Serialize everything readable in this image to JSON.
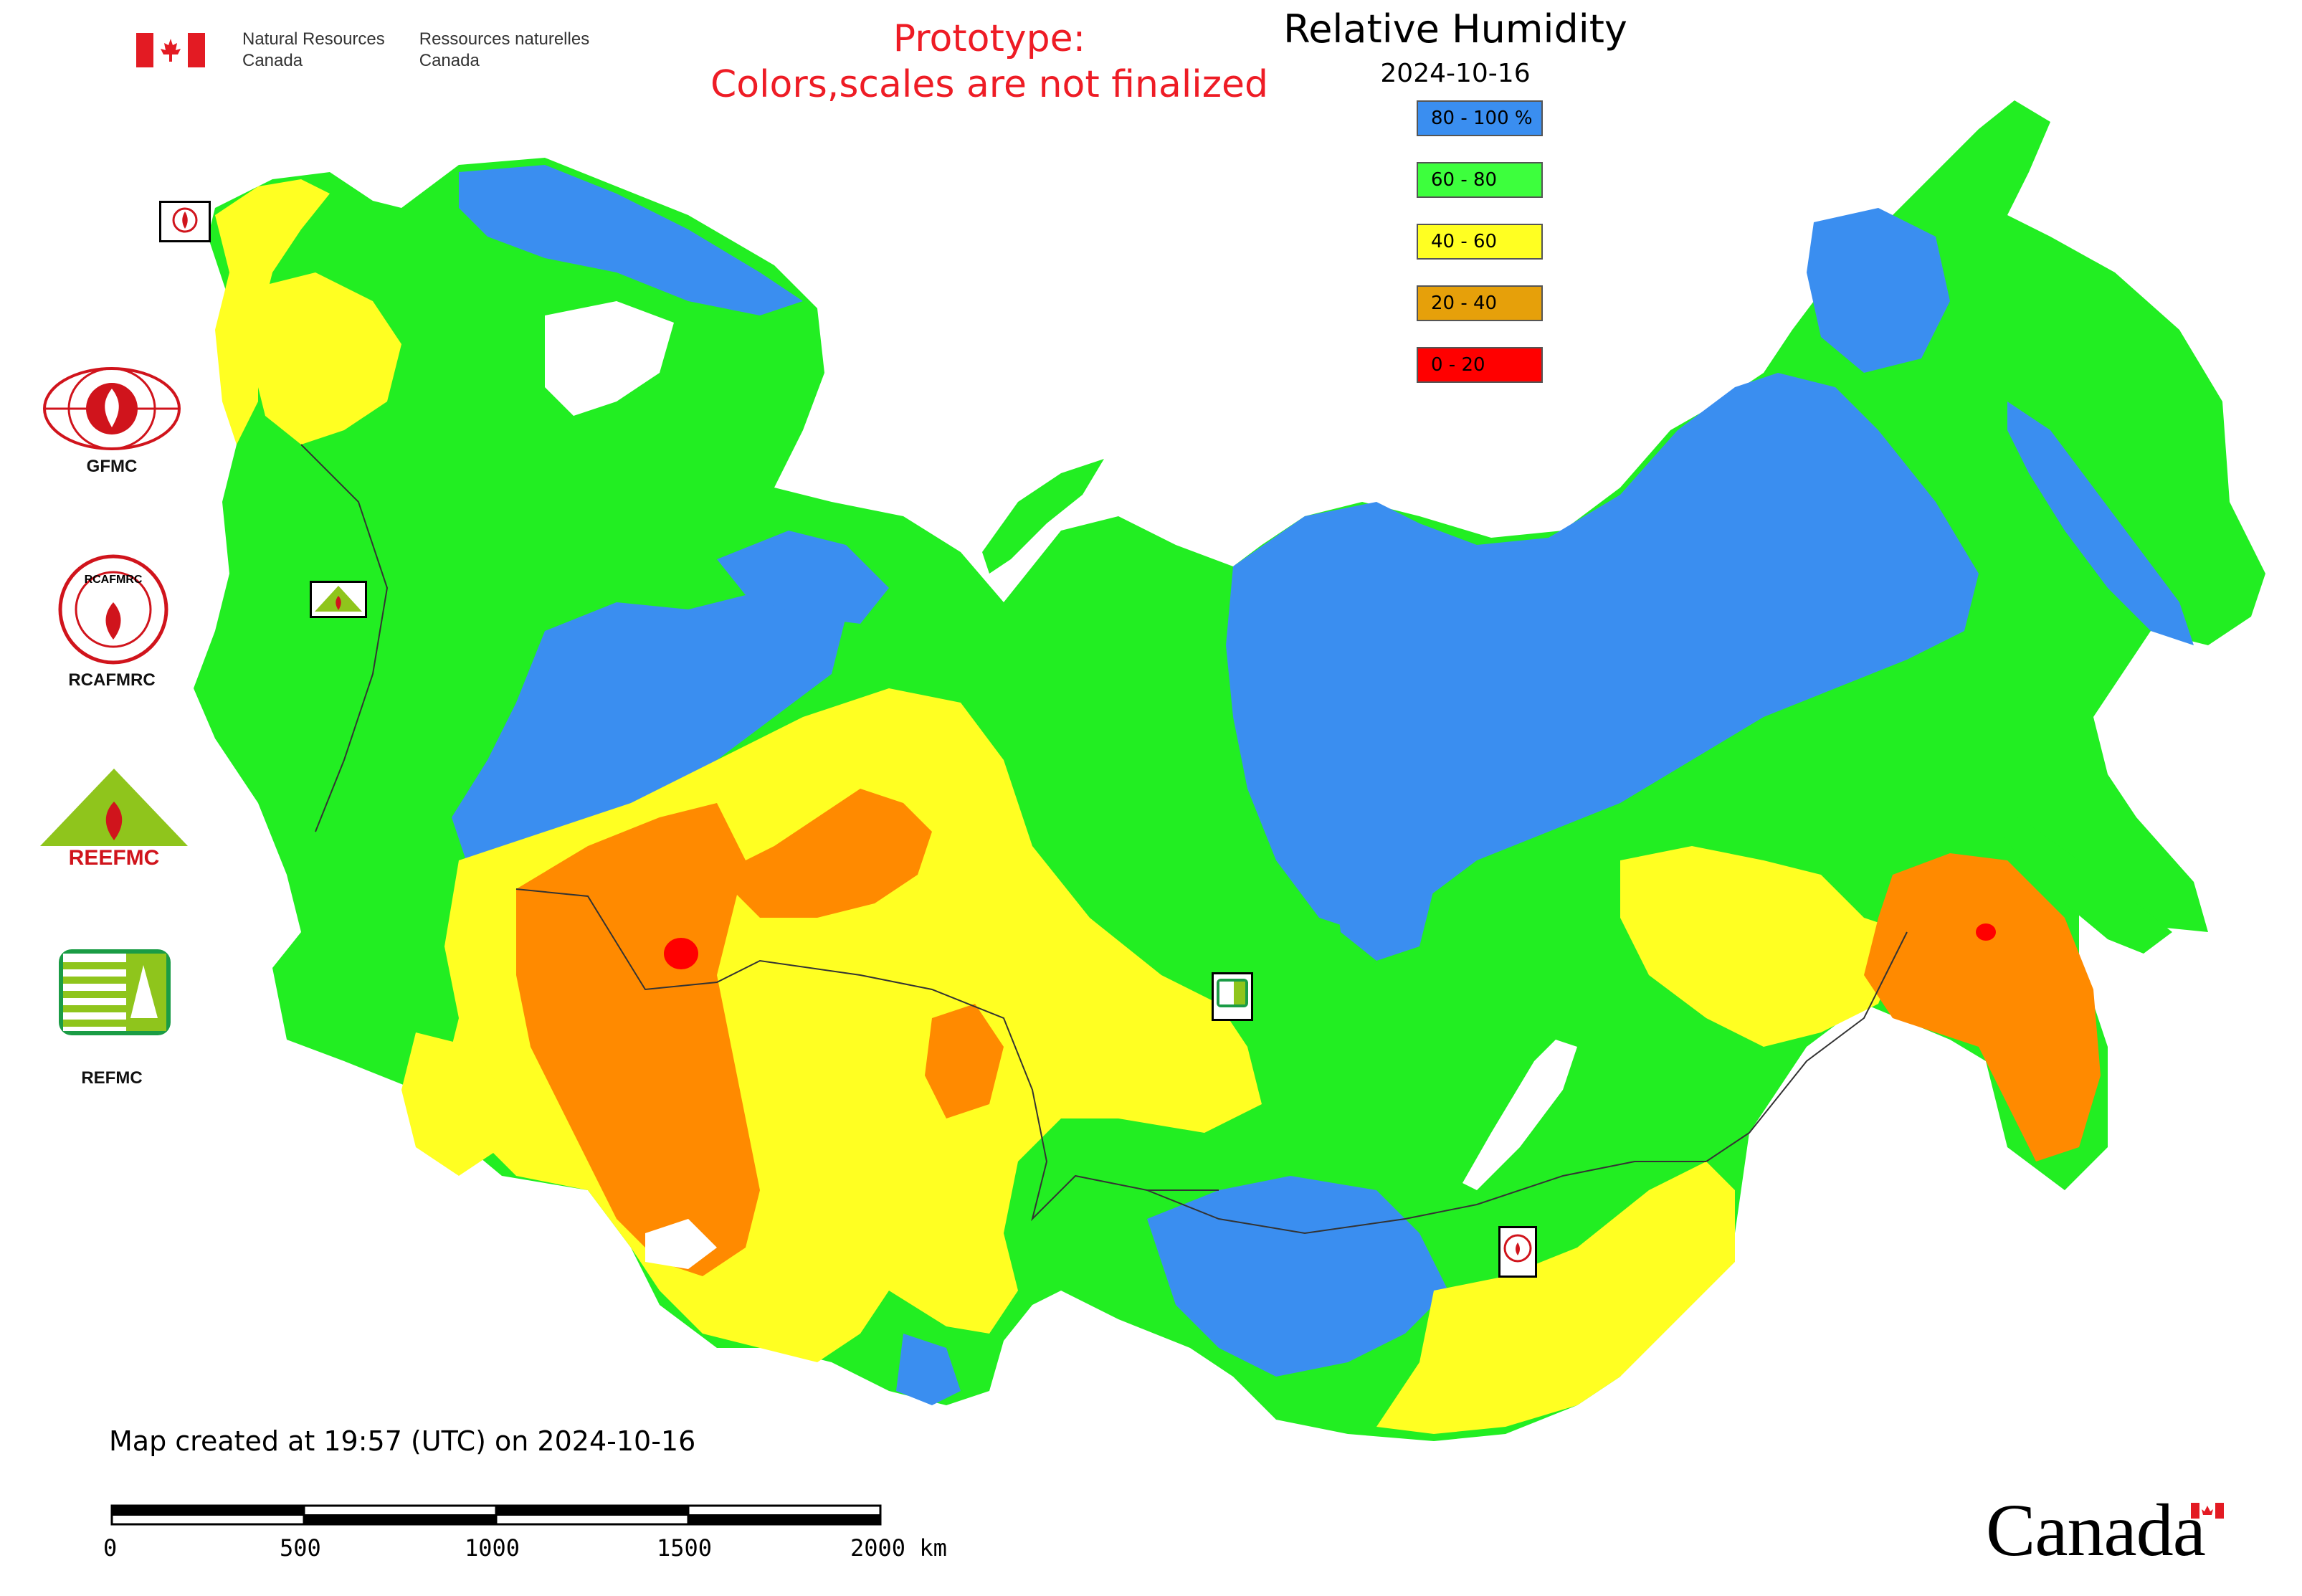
{
  "header": {
    "gov_en_line1": "Natural Resources",
    "gov_en_line2": "Canada",
    "gov_fr_line1": "Ressources naturelles",
    "gov_fr_line2": "Canada",
    "prototype_line1": "Prototype:",
    "prototype_line2": "Colors,scales are not finalized"
  },
  "map": {
    "title": "Relative Humidity",
    "date": "2024-10-16",
    "legend": [
      {
        "label": "80 - 100 %",
        "color": "#3a8ef0"
      },
      {
        "label": "60 - 80",
        "color": "#3dff3d"
      },
      {
        "label": "40 - 60",
        "color": "#ffff22"
      },
      {
        "label": "20 - 40",
        "color": "#e6a00a"
      },
      {
        "label": "0 - 20",
        "color": "#ff0000"
      }
    ],
    "colors": {
      "blue": "#3a8ef0",
      "green": "#22ee22",
      "yellow": "#ffff22",
      "orange": "#ff8a00",
      "red": "#ff0000"
    }
  },
  "centers": {
    "gfmc": "GFMC",
    "rcafmrc": "RCAFMRC",
    "reefmc": "REEFMC",
    "refmc": "REFMC",
    "ree_logo_text": "REEFMC",
    "rcafmrc_logo_text": "RCAFMRC"
  },
  "footer": {
    "created": "Map created at 19:57 (UTC) on 2024-10-16",
    "scale_ticks": [
      "0",
      "500",
      "1000",
      "1500",
      "2000 km"
    ],
    "wordmark": "Canada"
  }
}
